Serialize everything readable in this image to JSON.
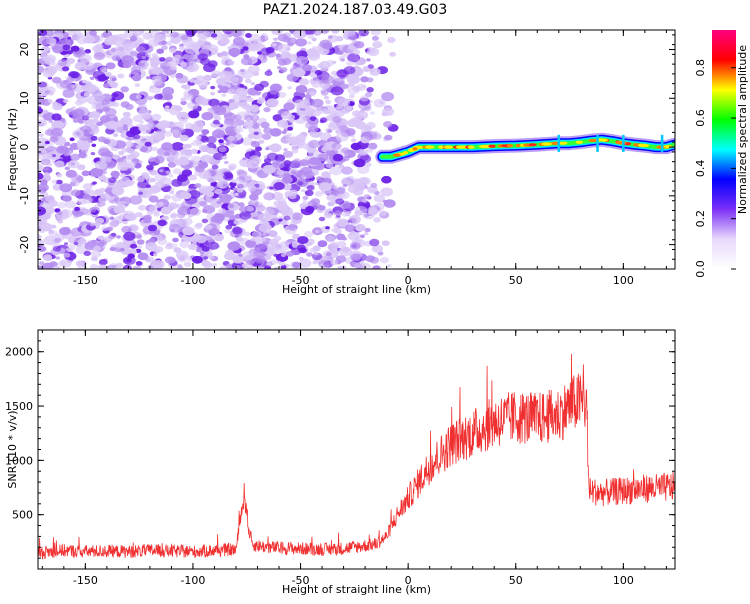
{
  "title": "PAZ1.2024.187.03.49.G03",
  "colors": {
    "snr_line": "#f03030",
    "scatter_light": "#d9c6f7",
    "scatter_mid": "#b48cf0",
    "scatter_dark": "#6a1de6",
    "colormap": [
      "#ffffff",
      "#e8d9fb",
      "#7b2ff7",
      "#0000ff",
      "#00ffff",
      "#00ff00",
      "#ffff00",
      "#ff0000",
      "#ff0080"
    ]
  },
  "chart_data": [
    {
      "type": "heatmap",
      "title": "PAZ1.2024.187.03.49.G03",
      "xlabel": "Height of straight line (km)",
      "ylabel": "Frequency (Hz)",
      "xlim": [
        -172,
        124
      ],
      "ylim": [
        -25,
        24
      ],
      "xticks": [
        -150,
        -100,
        -50,
        0,
        50,
        100
      ],
      "yticks": [
        -20,
        -10,
        0,
        10,
        20
      ],
      "description_points": {
        "noise_region_x": [
          -172,
          -8
        ],
        "tone_track": {
          "x": [
            -12,
            -8,
            -4,
            0,
            5,
            10,
            20,
            30,
            40,
            50,
            60,
            70,
            75,
            80,
            85,
            90,
            95,
            100,
            105,
            110,
            115,
            120,
            124
          ],
          "y": [
            -2.0,
            -2.0,
            -1.5,
            -1.0,
            0,
            0,
            0,
            0,
            0.2,
            0.3,
            0.5,
            0.8,
            0.8,
            1.0,
            1.3,
            1.5,
            1.2,
            0.8,
            0.5,
            0.3,
            0,
            0,
            0.5
          ]
        }
      },
      "colorbar": {
        "label": "Normalized spectral amplitude",
        "ticks": [
          0.0,
          0.2,
          0.4,
          0.6,
          0.8
        ],
        "range": [
          0,
          0.95
        ]
      }
    },
    {
      "type": "line",
      "xlabel": "Height of straight line (km)",
      "ylabel": "SNR (10 * v/v)",
      "xlim": [
        -172,
        124
      ],
      "ylim": [
        0,
        2200
      ],
      "xticks": [
        -150,
        -100,
        -50,
        0,
        50,
        100
      ],
      "yticks": [
        500,
        1000,
        1500,
        2000
      ],
      "series": [
        {
          "x": [
            -172,
            -160,
            -150,
            -140,
            -130,
            -120,
            -110,
            -100,
            -90,
            -80,
            -78,
            -76,
            -74,
            -72,
            -65,
            -55,
            -45,
            -35,
            -25,
            -15,
            -10,
            -5,
            0,
            5,
            10,
            15,
            20,
            30,
            40,
            50,
            60,
            70,
            75,
            80,
            83,
            84,
            90,
            100,
            110,
            120,
            124
          ],
          "y": [
            150,
            170,
            160,
            165,
            160,
            170,
            165,
            160,
            170,
            180,
            450,
            700,
            350,
            220,
            200,
            190,
            185,
            180,
            200,
            230,
            300,
            500,
            650,
            800,
            950,
            1050,
            1150,
            1250,
            1350,
            1400,
            1380,
            1420,
            1500,
            1550,
            1500,
            720,
            700,
            720,
            740,
            750,
            760
          ]
        }
      ]
    }
  ]
}
